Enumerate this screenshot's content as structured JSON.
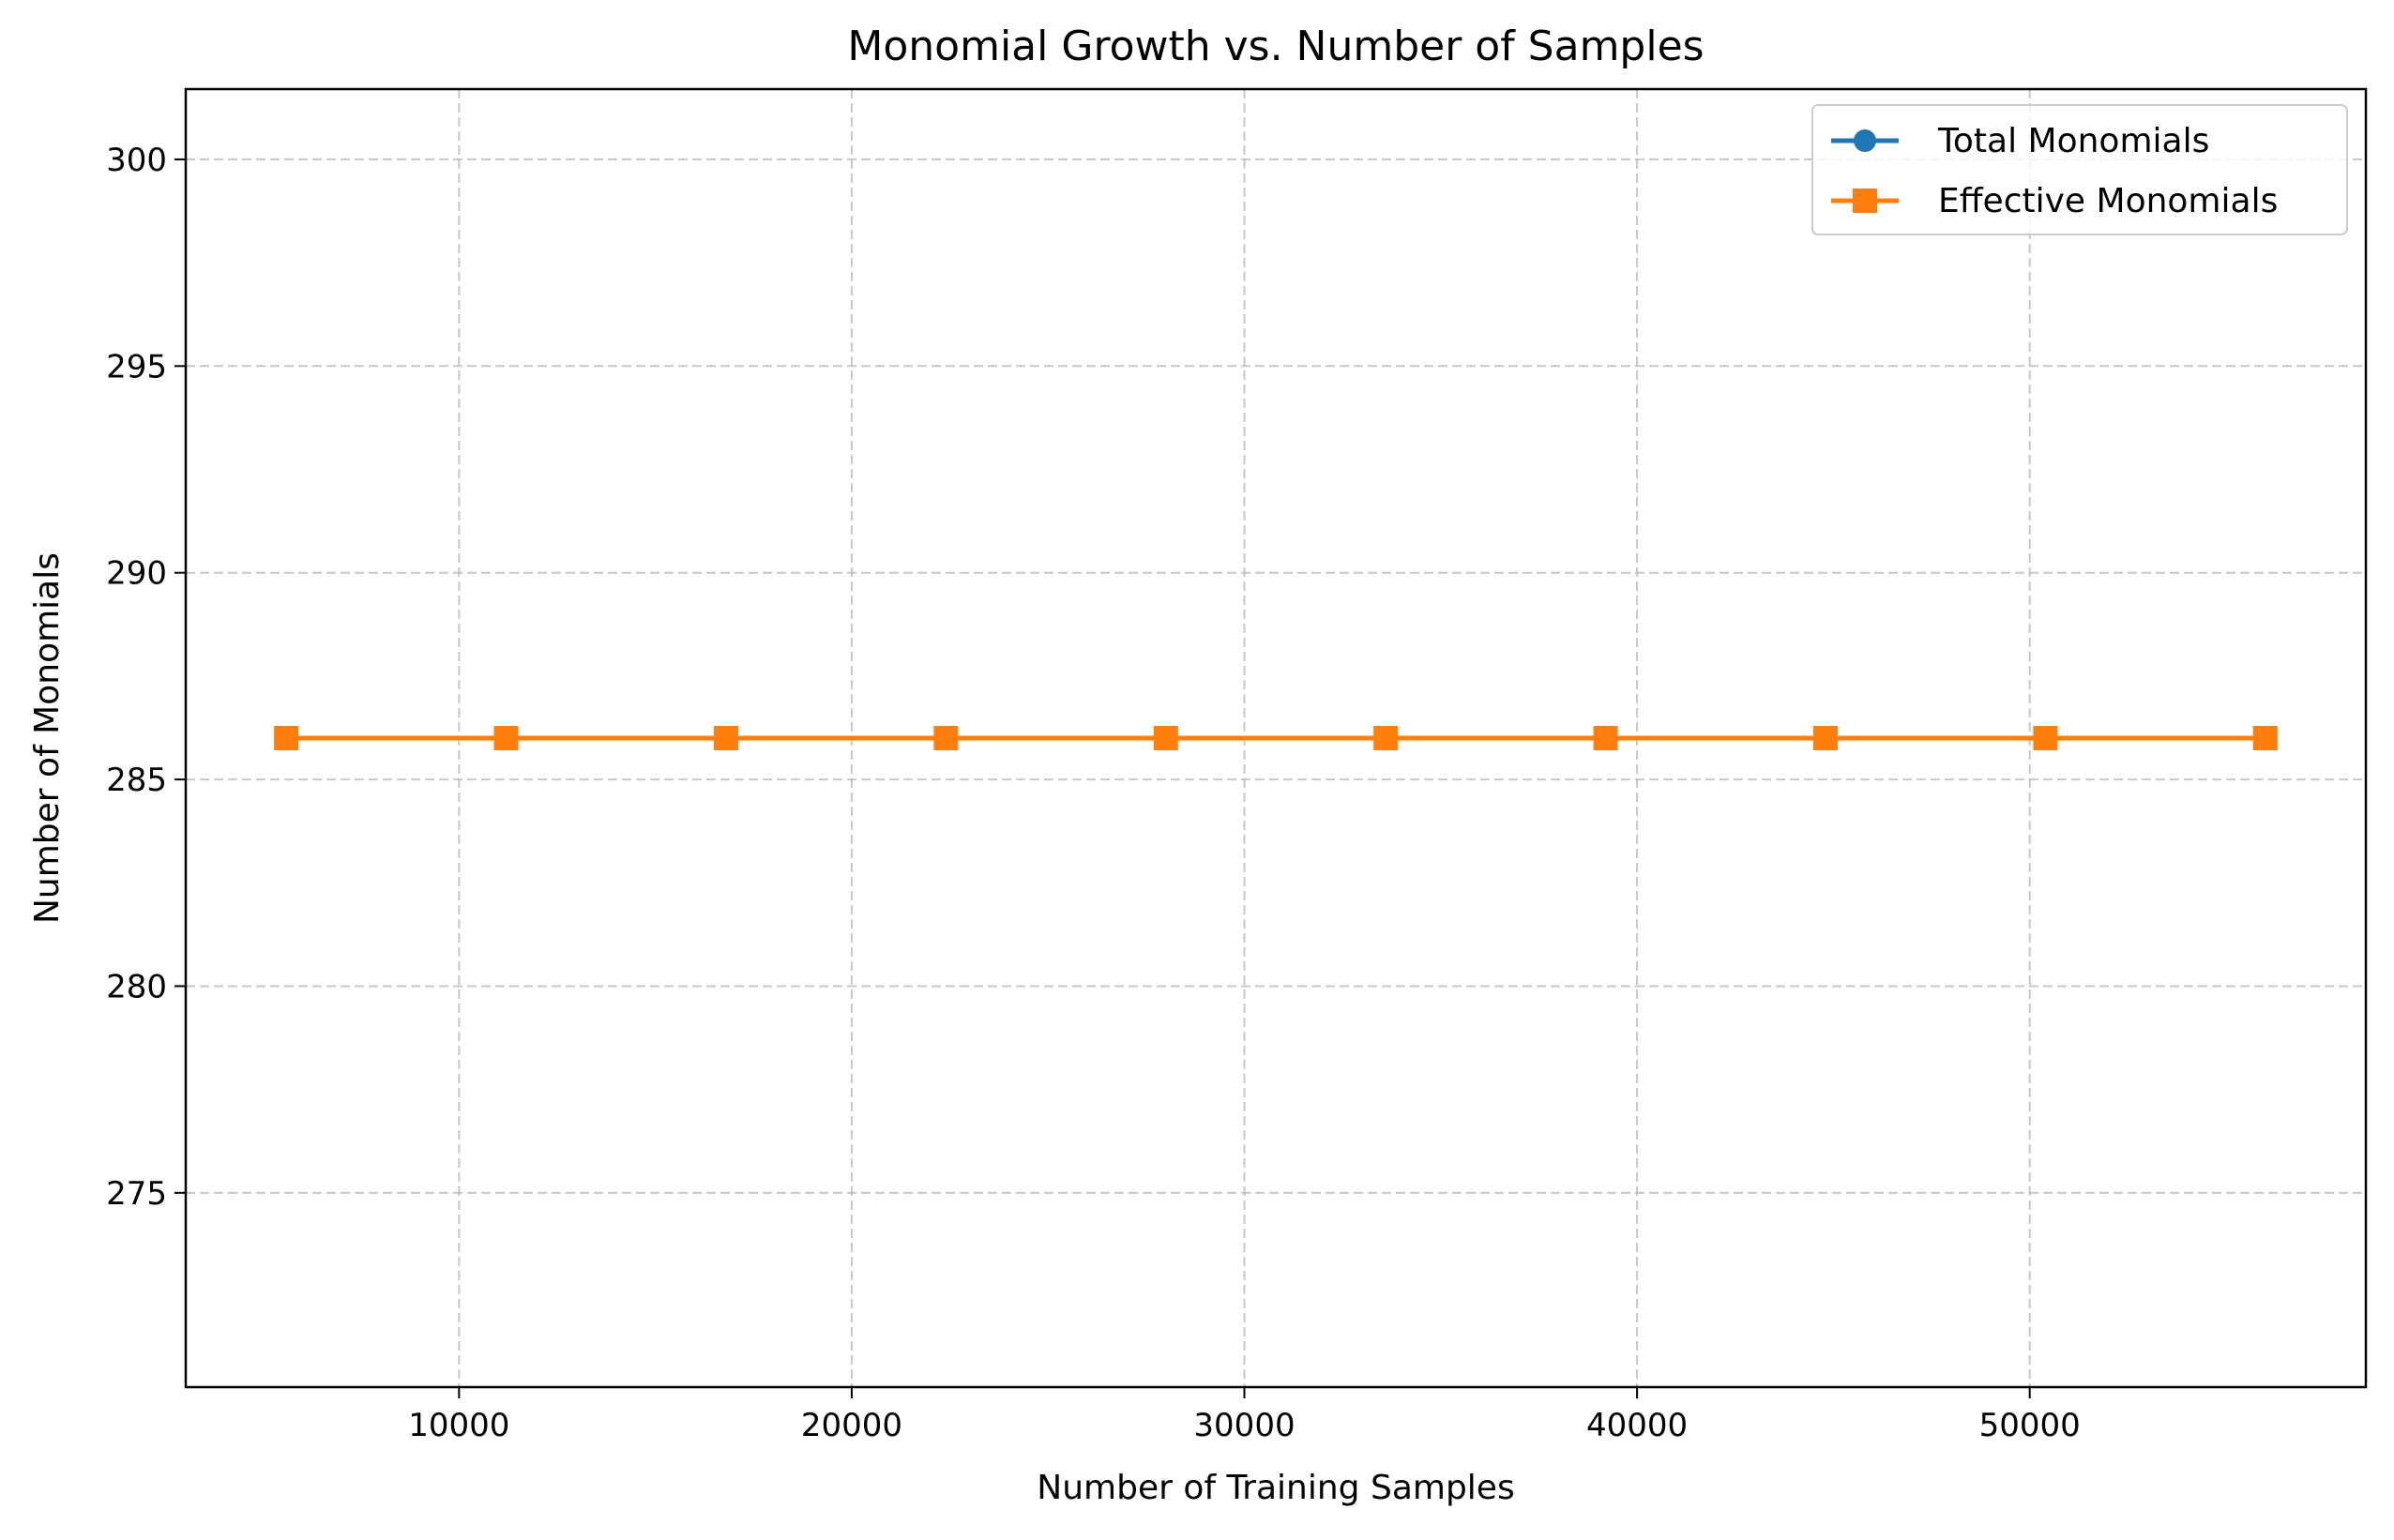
{
  "chart_data": {
    "type": "line",
    "title": "Monomial Growth vs. Number of Samples",
    "xlabel": "Number of Training Samples",
    "ylabel": "Number of Monomials",
    "x": [
      5600,
      11200,
      16800,
      22400,
      28000,
      33600,
      39200,
      44800,
      50400,
      56000
    ],
    "xlim": [
      3040,
      58560
    ],
    "ylim": [
      270.3,
      301.7
    ],
    "xticks": [
      10000,
      20000,
      30000,
      40000,
      50000
    ],
    "yticks": [
      275,
      280,
      285,
      290,
      295,
      300
    ],
    "grid": true,
    "legend_position": "top-right",
    "series": [
      {
        "name": "Total Monomials",
        "color": "#1f77b4",
        "marker": "circle",
        "values": [
          286,
          286,
          286,
          286,
          286,
          286,
          286,
          286,
          286,
          286
        ]
      },
      {
        "name": "Effective Monomials",
        "color": "#ff7f0e",
        "marker": "square",
        "values": [
          286,
          286,
          286,
          286,
          286,
          286,
          286,
          286,
          286,
          286
        ]
      }
    ]
  }
}
